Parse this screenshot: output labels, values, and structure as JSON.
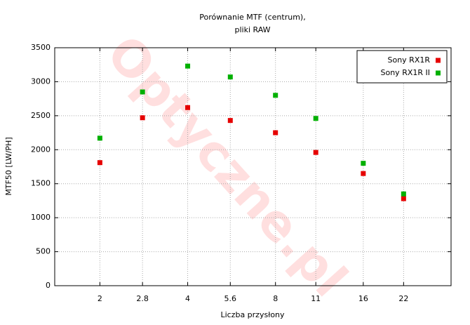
{
  "chart_data": {
    "type": "scatter",
    "title": [
      "Porównanie MTF (centrum),",
      "pliki RAW"
    ],
    "x_label": "Liczba przysłony",
    "y_label": "MTF50 [LW/PH]",
    "watermark": "Optyczne.pl",
    "x": [
      2,
      2.8,
      4,
      5.6,
      8,
      11,
      16,
      22
    ],
    "xscale": "log",
    "xlim": [
      1.4,
      32
    ],
    "xticks": [
      2,
      2.8,
      4,
      5.6,
      8,
      11,
      16,
      22
    ],
    "ylim": [
      0,
      3500
    ],
    "yticks": [
      0,
      500,
      1000,
      1500,
      2000,
      2500,
      3000,
      3500
    ],
    "grid": true,
    "legend": "top-right",
    "series": [
      {
        "name": "Sony RX1R",
        "color": "#e60000",
        "values": [
          1810,
          2470,
          2620,
          2430,
          2250,
          1960,
          1650,
          1280
        ]
      },
      {
        "name": "Sony RX1R II",
        "color": "#00b000",
        "values": [
          2170,
          2850,
          3230,
          3070,
          2800,
          2460,
          1800,
          1350
        ]
      }
    ]
  }
}
